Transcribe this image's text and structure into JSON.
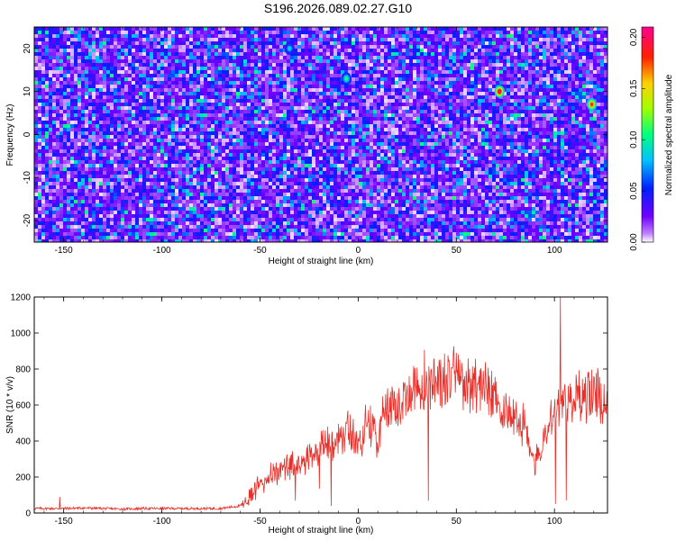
{
  "title": "S196.2026.089.02.27.G10",
  "chart_data": [
    {
      "type": "heatmap",
      "title": "",
      "xlabel": "Height of straight line (km)",
      "ylabel": "Frequency (Hz)",
      "xlim": [
        -165,
        127
      ],
      "ylim": [
        -25,
        25
      ],
      "xticks": [
        -150,
        -100,
        -50,
        0,
        50,
        100
      ],
      "yticks": [
        -20,
        -10,
        0,
        10,
        20
      ],
      "colorbar": {
        "label": "Normalized spectral amplitude",
        "range": [
          0.0,
          0.21
        ],
        "ticks": [
          "0.00",
          "0.05",
          "0.10",
          "0.15",
          "0.20"
        ],
        "colors": [
          "#ffffff",
          "#c080ff",
          "#7000ff",
          "#0020ff",
          "#00c0ff",
          "#00ff80",
          "#a0ff00",
          "#ffd000",
          "#ff2000",
          "#ff0090"
        ]
      },
      "hotspots": [
        {
          "x": 72,
          "y": 10,
          "value": 0.21
        },
        {
          "x": 119,
          "y": 7,
          "value": 0.19
        },
        {
          "x": -6,
          "y": 13,
          "value": 0.11
        },
        {
          "x": -35,
          "y": 20,
          "value": 0.09
        }
      ]
    },
    {
      "type": "line",
      "title": "",
      "xlabel": "Height of straight line (km)",
      "ylabel": "SNR (10 * v/v)",
      "xlim": [
        -165,
        127
      ],
      "ylim": [
        0,
        1200
      ],
      "xticks": [
        -150,
        -100,
        -50,
        0,
        50,
        100
      ],
      "yticks": [
        0,
        200,
        400,
        600,
        800,
        1000,
        1200
      ],
      "series": [
        {
          "name": "SNR",
          "color": "#e8302a",
          "x": [
            -165,
            -150,
            -140,
            -130,
            -120,
            -110,
            -100,
            -90,
            -80,
            -70,
            -60,
            -55,
            -50,
            -45,
            -40,
            -35,
            -30,
            -25,
            -20,
            -15,
            -10,
            -5,
            0,
            5,
            10,
            15,
            20,
            25,
            30,
            35,
            40,
            45,
            50,
            55,
            60,
            65,
            70,
            75,
            80,
            85,
            90,
            95,
            100,
            105,
            110,
            115,
            120,
            127
          ],
          "values": [
            25,
            25,
            28,
            25,
            22,
            25,
            25,
            25,
            25,
            25,
            40,
            100,
            170,
            210,
            230,
            250,
            280,
            300,
            360,
            380,
            410,
            460,
            370,
            520,
            420,
            600,
            590,
            650,
            700,
            740,
            760,
            720,
            770,
            720,
            720,
            720,
            600,
            600,
            520,
            470,
            260,
            400,
            560,
            620,
            620,
            660,
            660,
            650
          ]
        }
      ],
      "spikes": [
        {
          "x": -152,
          "y": 90
        },
        {
          "x": 103,
          "y": 1200
        }
      ]
    }
  ]
}
